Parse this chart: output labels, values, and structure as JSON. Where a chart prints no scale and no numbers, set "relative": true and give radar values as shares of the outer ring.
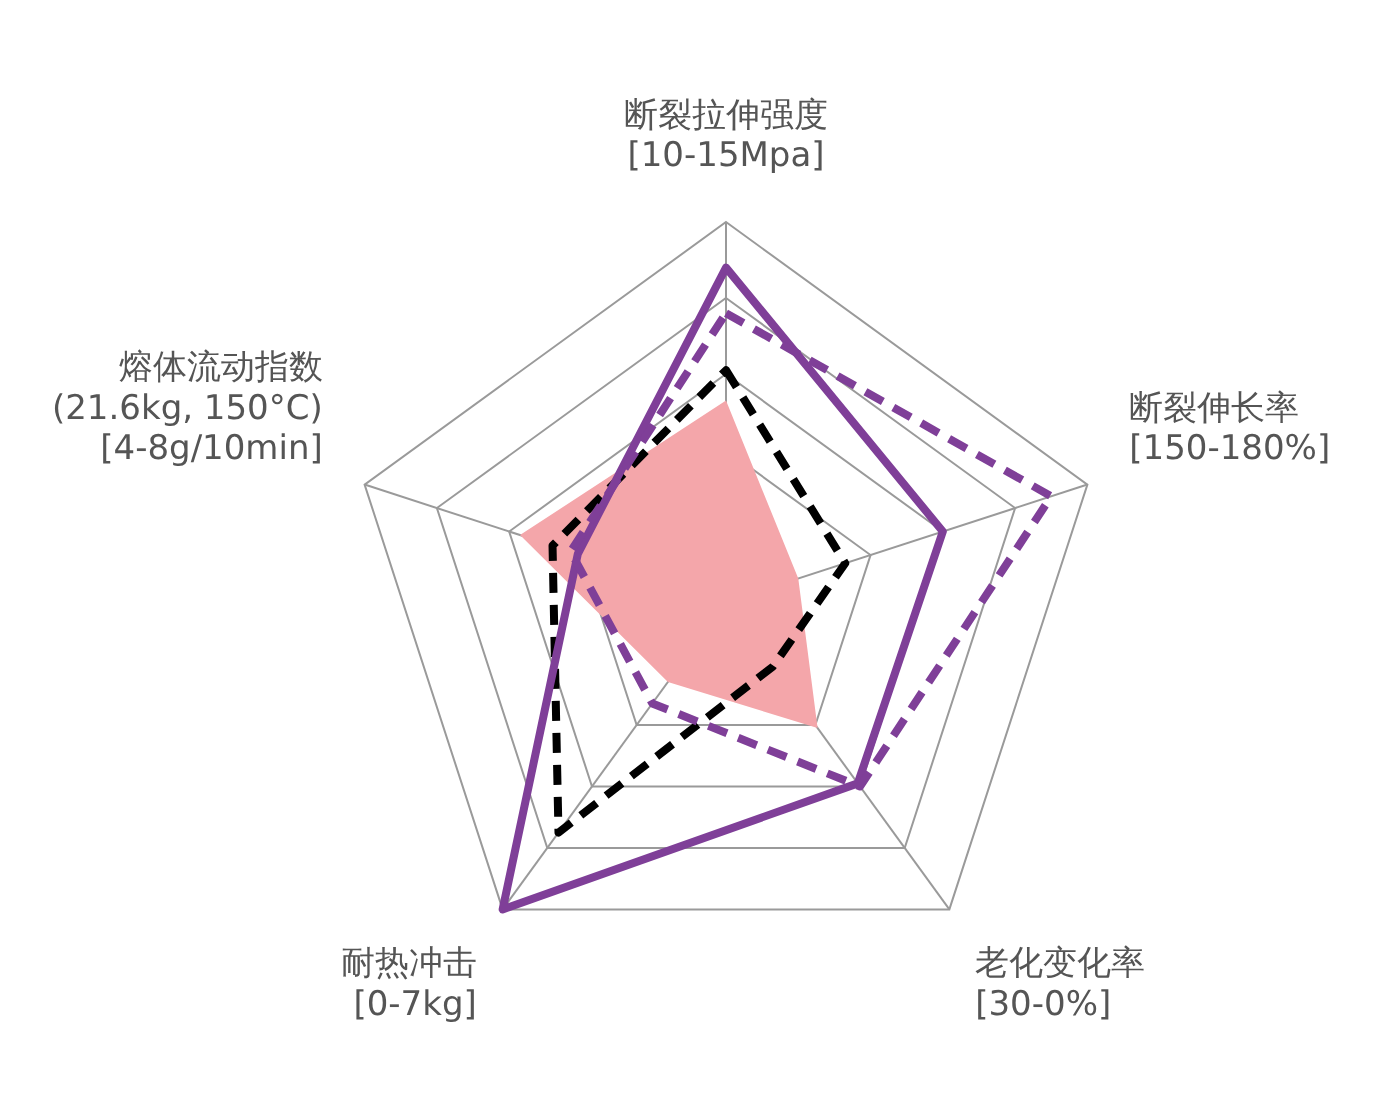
{
  "chart_data": {
    "type": "radar",
    "relative": true,
    "legend": false,
    "grid": true,
    "categories": [
      "断裂拉伸强度\n[10-15Mpa]",
      "断裂伸长率\n[150-180%]",
      "老化变化率\n[30-0%]",
      "耐热冲击\n[0-7kg]",
      "熔体流动指数\n(21.6kg, 150°C)\n[4-8g/10min]"
    ],
    "series": [
      {
        "type": "area",
        "color": "#f4a6aa",
        "values": [
          0.53,
          0.2,
          0.41,
          0.26,
          0.57
        ]
      },
      {
        "color": "#000000",
        "line_style": "dashed",
        "values": [
          0.61,
          0.33,
          0.21,
          0.75,
          0.48
        ]
      },
      {
        "color": "#7f3f98",
        "line_style": "solid",
        "values": [
          0.88,
          0.6,
          0.59,
          1.0,
          0.41
        ]
      },
      {
        "color": "#7f3f98",
        "line_style": "dashed",
        "values": [
          0.76,
          0.9,
          0.6,
          0.33,
          0.43
        ]
      }
    ]
  }
}
